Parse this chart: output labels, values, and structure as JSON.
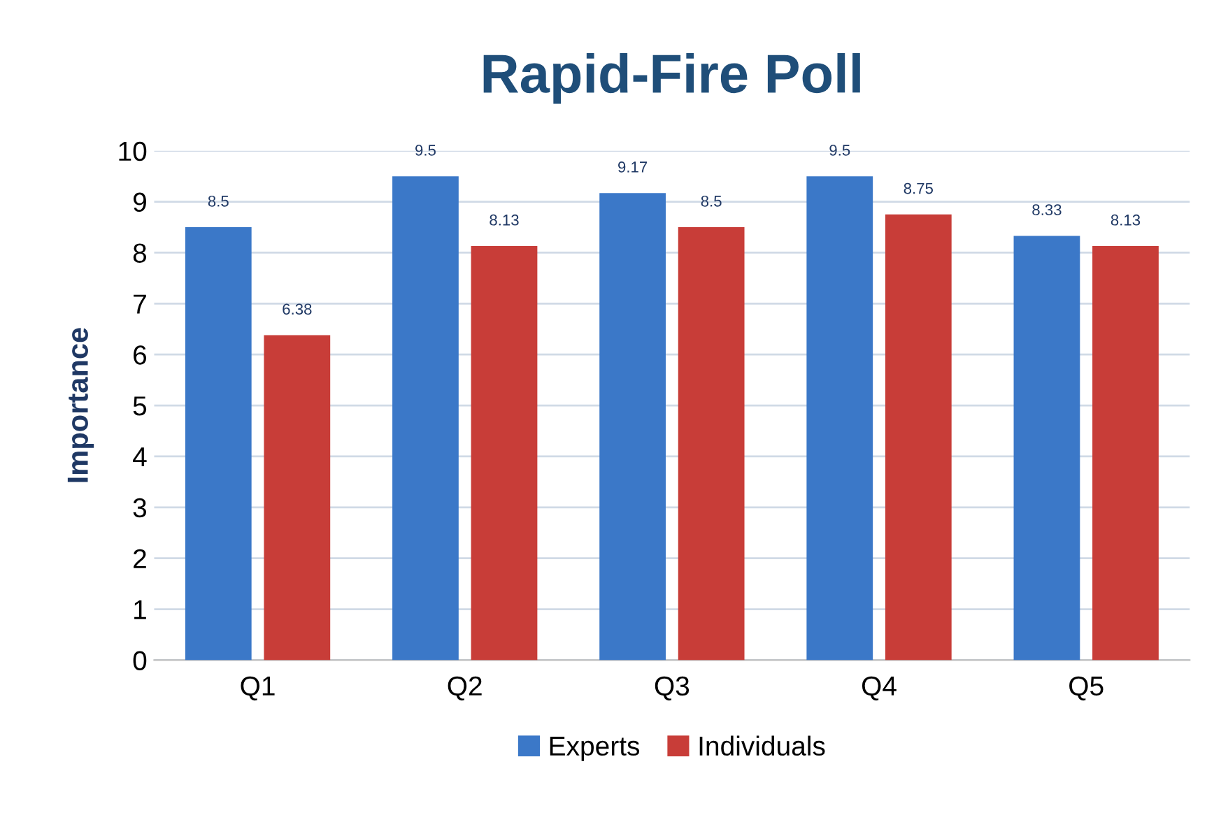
{
  "chart_data": {
    "type": "bar",
    "title": "Rapid-Fire Poll",
    "ylabel": "Importance",
    "categories": [
      "Q1",
      "Q2",
      "Q3",
      "Q4",
      "Q5"
    ],
    "series": [
      {
        "name": "Experts",
        "color": "#3b78c8",
        "values": [
          8.5,
          9.5,
          9.17,
          9.5,
          8.33
        ]
      },
      {
        "name": "Individuals",
        "color": "#c83d38",
        "values": [
          6.38,
          8.13,
          8.5,
          8.75,
          8.13
        ]
      }
    ],
    "ylim": [
      0,
      10
    ],
    "yticks": [
      0,
      1,
      2,
      3,
      4,
      5,
      6,
      7,
      8,
      9,
      10
    ],
    "grid": "y",
    "legend": "bottom",
    "data_labels": true
  }
}
